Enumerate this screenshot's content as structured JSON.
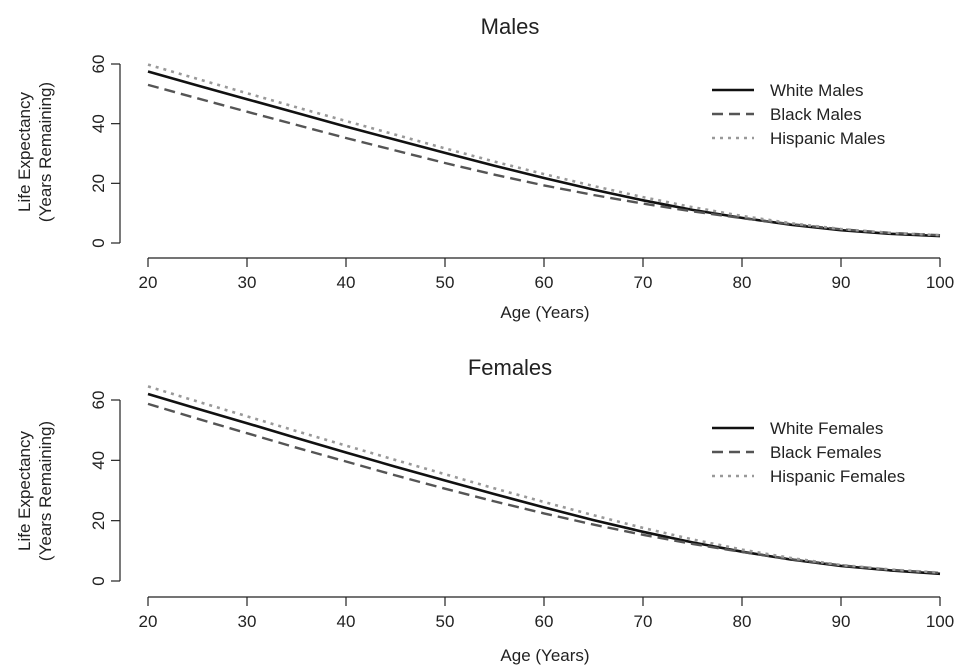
{
  "chart_data": [
    {
      "type": "line",
      "title": "Males",
      "xlabel": "Age (Years)",
      "ylabel_lines": [
        "Life Expectancy",
        "(Years Remaining)"
      ],
      "xlim": [
        20,
        100
      ],
      "ylim": [
        0,
        60
      ],
      "xticks": [
        20,
        30,
        40,
        50,
        60,
        70,
        80,
        90,
        100
      ],
      "yticks": [
        0,
        20,
        40,
        60
      ],
      "grid": false,
      "legend_position": "top-right",
      "x": [
        20,
        25,
        30,
        35,
        40,
        45,
        50,
        55,
        60,
        65,
        70,
        75,
        80,
        85,
        90,
        95,
        100
      ],
      "series": [
        {
          "name": "White Males",
          "style": "solid",
          "color": "#111111",
          "values": [
            57.5,
            52.8,
            48.2,
            43.6,
            39.0,
            34.6,
            30.2,
            25.9,
            21.8,
            17.9,
            14.3,
            11.1,
            8.4,
            6.1,
            4.3,
            3.1,
            2.3
          ]
        },
        {
          "name": "Black Males",
          "style": "dashed",
          "color": "#555555",
          "values": [
            53.0,
            48.5,
            44.0,
            39.6,
            35.2,
            31.0,
            26.8,
            22.9,
            19.3,
            16.1,
            13.2,
            10.6,
            8.3,
            6.3,
            4.6,
            3.4,
            2.6
          ]
        },
        {
          "name": "Hispanic Males",
          "style": "dotted",
          "color": "#999999",
          "values": [
            59.8,
            55.0,
            50.2,
            45.5,
            40.9,
            36.3,
            31.7,
            27.3,
            23.1,
            19.1,
            15.4,
            12.0,
            9.1,
            6.6,
            4.7,
            3.4,
            2.6
          ]
        }
      ]
    },
    {
      "type": "line",
      "title": "Females",
      "xlabel": "Age (Years)",
      "ylabel_lines": [
        "Life Expectancy",
        "(Years Remaining)"
      ],
      "xlim": [
        20,
        100
      ],
      "ylim": [
        0,
        60
      ],
      "xticks": [
        20,
        30,
        40,
        50,
        60,
        70,
        80,
        90,
        100
      ],
      "yticks": [
        0,
        20,
        40,
        60
      ],
      "grid": false,
      "legend_position": "top-right",
      "x": [
        20,
        25,
        30,
        35,
        40,
        45,
        50,
        55,
        60,
        65,
        70,
        75,
        80,
        85,
        90,
        95,
        100
      ],
      "series": [
        {
          "name": "White Females",
          "style": "solid",
          "color": "#111111",
          "values": [
            62.0,
            57.1,
            52.3,
            47.4,
            42.6,
            37.9,
            33.3,
            28.8,
            24.4,
            20.2,
            16.3,
            12.8,
            9.7,
            7.1,
            5.0,
            3.5,
            2.4
          ]
        },
        {
          "name": "Black Females",
          "style": "dashed",
          "color": "#555555",
          "values": [
            58.7,
            53.8,
            49.0,
            44.2,
            39.6,
            35.0,
            30.6,
            26.4,
            22.4,
            18.7,
            15.3,
            12.3,
            9.6,
            7.2,
            5.2,
            3.7,
            2.7
          ]
        },
        {
          "name": "Hispanic Females",
          "style": "dotted",
          "color": "#999999",
          "values": [
            64.5,
            59.5,
            54.6,
            49.7,
            44.9,
            40.1,
            35.4,
            30.7,
            26.2,
            21.8,
            17.6,
            13.8,
            10.4,
            7.6,
            5.3,
            3.8,
            2.8
          ]
        }
      ]
    }
  ]
}
